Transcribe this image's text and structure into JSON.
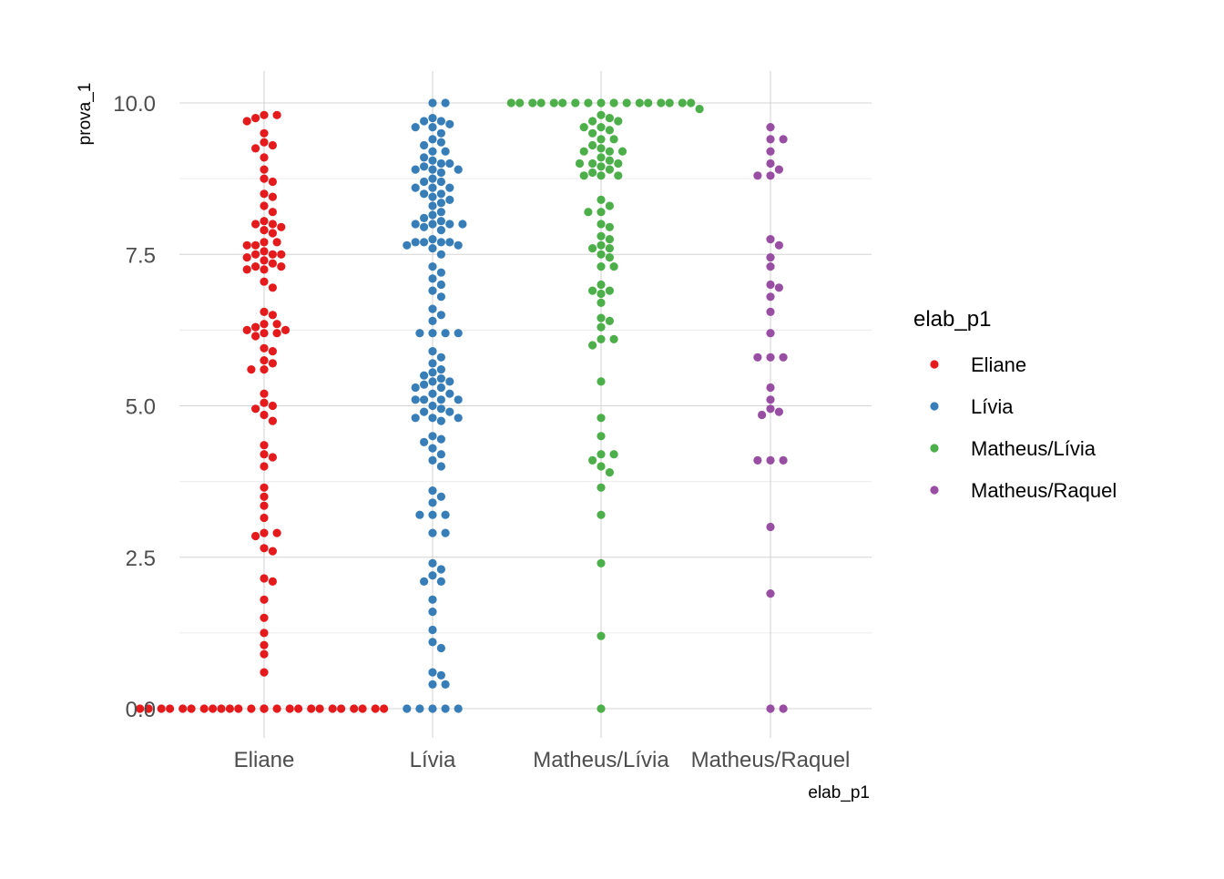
{
  "chart_data": {
    "type": "scatter",
    "subtype": "beeswarm",
    "title": "",
    "xlabel": "elab_p1",
    "ylabel": "prova_1",
    "categories": [
      "Eliane",
      "Lívia",
      "Matheus/Lívia",
      "Matheus/Raquel"
    ],
    "ylim": [
      -0.4,
      10.4
    ],
    "yticks": [
      0.0,
      2.5,
      5.0,
      7.5,
      10.0
    ],
    "ytick_labels": [
      "0.0",
      "2.5",
      "5.0",
      "7.5",
      "10.0"
    ],
    "grid": true,
    "legend": {
      "title": "elab_p1",
      "position": "right",
      "entries": [
        "Eliane",
        "Lívia",
        "Matheus/Lívia",
        "Matheus/Raquel"
      ]
    },
    "colors": {
      "Eliane": "#E41A1C",
      "Lívia": "#377EB8",
      "Matheus/Lívia": "#4DAF4A",
      "Matheus/Raquel": "#984EA3"
    },
    "series": [
      {
        "name": "Eliane",
        "values": [
          9.8,
          9.8,
          9.75,
          9.7,
          9.5,
          9.35,
          9.3,
          9.25,
          9.1,
          8.9,
          8.75,
          8.7,
          8.5,
          8.45,
          8.3,
          8.2,
          8.05,
          8.0,
          8.0,
          7.95,
          7.9,
          7.85,
          7.7,
          7.7,
          7.65,
          7.65,
          7.55,
          7.5,
          7.5,
          7.5,
          7.45,
          7.4,
          7.35,
          7.3,
          7.3,
          7.25,
          7.25,
          7.05,
          6.95,
          6.55,
          6.5,
          6.35,
          6.35,
          6.3,
          6.25,
          6.25,
          6.2,
          6.2,
          6.15,
          5.95,
          5.9,
          5.75,
          5.7,
          5.6,
          5.6,
          5.2,
          5.05,
          5.0,
          4.95,
          4.85,
          4.75,
          4.35,
          4.2,
          4.15,
          4.0,
          3.65,
          3.5,
          3.35,
          3.15,
          2.9,
          2.9,
          2.85,
          2.65,
          2.6,
          2.15,
          2.1,
          1.8,
          1.5,
          1.25,
          1.05,
          0.9,
          0.6,
          0,
          0,
          0,
          0,
          0,
          0,
          0,
          0,
          0,
          0,
          0,
          0,
          0,
          0,
          0,
          0,
          0,
          0,
          0,
          0,
          0,
          0,
          0,
          0,
          0,
          0
        ]
      },
      {
        "name": "Lívia",
        "values": [
          10.0,
          10.0,
          9.75,
          9.7,
          9.7,
          9.65,
          9.6,
          9.6,
          9.5,
          9.4,
          9.35,
          9.3,
          9.2,
          9.2,
          9.1,
          9.05,
          9.0,
          9.0,
          8.95,
          8.9,
          8.9,
          8.9,
          8.85,
          8.75,
          8.7,
          8.7,
          8.6,
          8.6,
          8.6,
          8.5,
          8.5,
          8.45,
          8.4,
          8.35,
          8.3,
          8.2,
          8.15,
          8.1,
          8.05,
          8.0,
          8.0,
          8.0,
          8.0,
          7.95,
          7.9,
          7.75,
          7.7,
          7.7,
          7.7,
          7.7,
          7.65,
          7.65,
          7.6,
          7.5,
          7.3,
          7.2,
          7.1,
          7.0,
          6.9,
          6.8,
          6.6,
          6.5,
          6.4,
          6.2,
          6.2,
          6.2,
          6.2,
          5.9,
          5.8,
          5.7,
          5.6,
          5.55,
          5.5,
          5.45,
          5.4,
          5.4,
          5.35,
          5.3,
          5.3,
          5.2,
          5.2,
          5.1,
          5.1,
          5.1,
          5.1,
          5.0,
          4.95,
          4.9,
          4.9,
          4.8,
          4.8,
          4.8,
          4.75,
          4.5,
          4.45,
          4.4,
          4.3,
          4.2,
          4.1,
          4.0,
          3.6,
          3.5,
          3.4,
          3.2,
          3.2,
          3.2,
          2.9,
          2.9,
          2.4,
          2.3,
          2.2,
          2.1,
          2.1,
          1.8,
          1.6,
          1.3,
          1.1,
          1.0,
          0.6,
          0.55,
          0.4,
          0.4,
          0,
          0,
          0,
          0,
          0
        ]
      },
      {
        "name": "Matheus/Lívia",
        "values": [
          10.0,
          10.0,
          10.0,
          10.0,
          10.0,
          10.0,
          10.0,
          10.0,
          10.0,
          10.0,
          10.0,
          10.0,
          10.0,
          10.0,
          10.0,
          10.0,
          10.0,
          9.9,
          9.8,
          9.75,
          9.7,
          9.7,
          9.6,
          9.6,
          9.55,
          9.5,
          9.4,
          9.4,
          9.3,
          9.25,
          9.2,
          9.2,
          9.2,
          9.1,
          9.05,
          9.0,
          9.0,
          9.0,
          8.95,
          8.9,
          8.85,
          8.8,
          8.8,
          8.8,
          8.4,
          8.3,
          8.2,
          8.2,
          8.0,
          7.95,
          7.8,
          7.75,
          7.65,
          7.6,
          7.6,
          7.5,
          7.45,
          7.3,
          7.3,
          7.0,
          6.9,
          6.9,
          6.85,
          6.7,
          6.45,
          6.4,
          6.3,
          6.1,
          6.1,
          6.0,
          5.4,
          4.8,
          4.5,
          4.2,
          4.2,
          4.1,
          4.0,
          3.9,
          3.65,
          3.2,
          2.4,
          1.2,
          0
        ]
      },
      {
        "name": "Matheus/Raquel",
        "values": [
          9.6,
          9.4,
          9.4,
          9.2,
          9.0,
          8.9,
          8.8,
          8.8,
          7.75,
          7.65,
          7.45,
          7.3,
          7.0,
          6.95,
          6.8,
          6.55,
          6.2,
          5.8,
          5.8,
          5.8,
          5.3,
          5.1,
          4.95,
          4.9,
          4.85,
          4.1,
          4.1,
          4.1,
          3.0,
          1.9,
          0,
          0
        ]
      }
    ]
  }
}
